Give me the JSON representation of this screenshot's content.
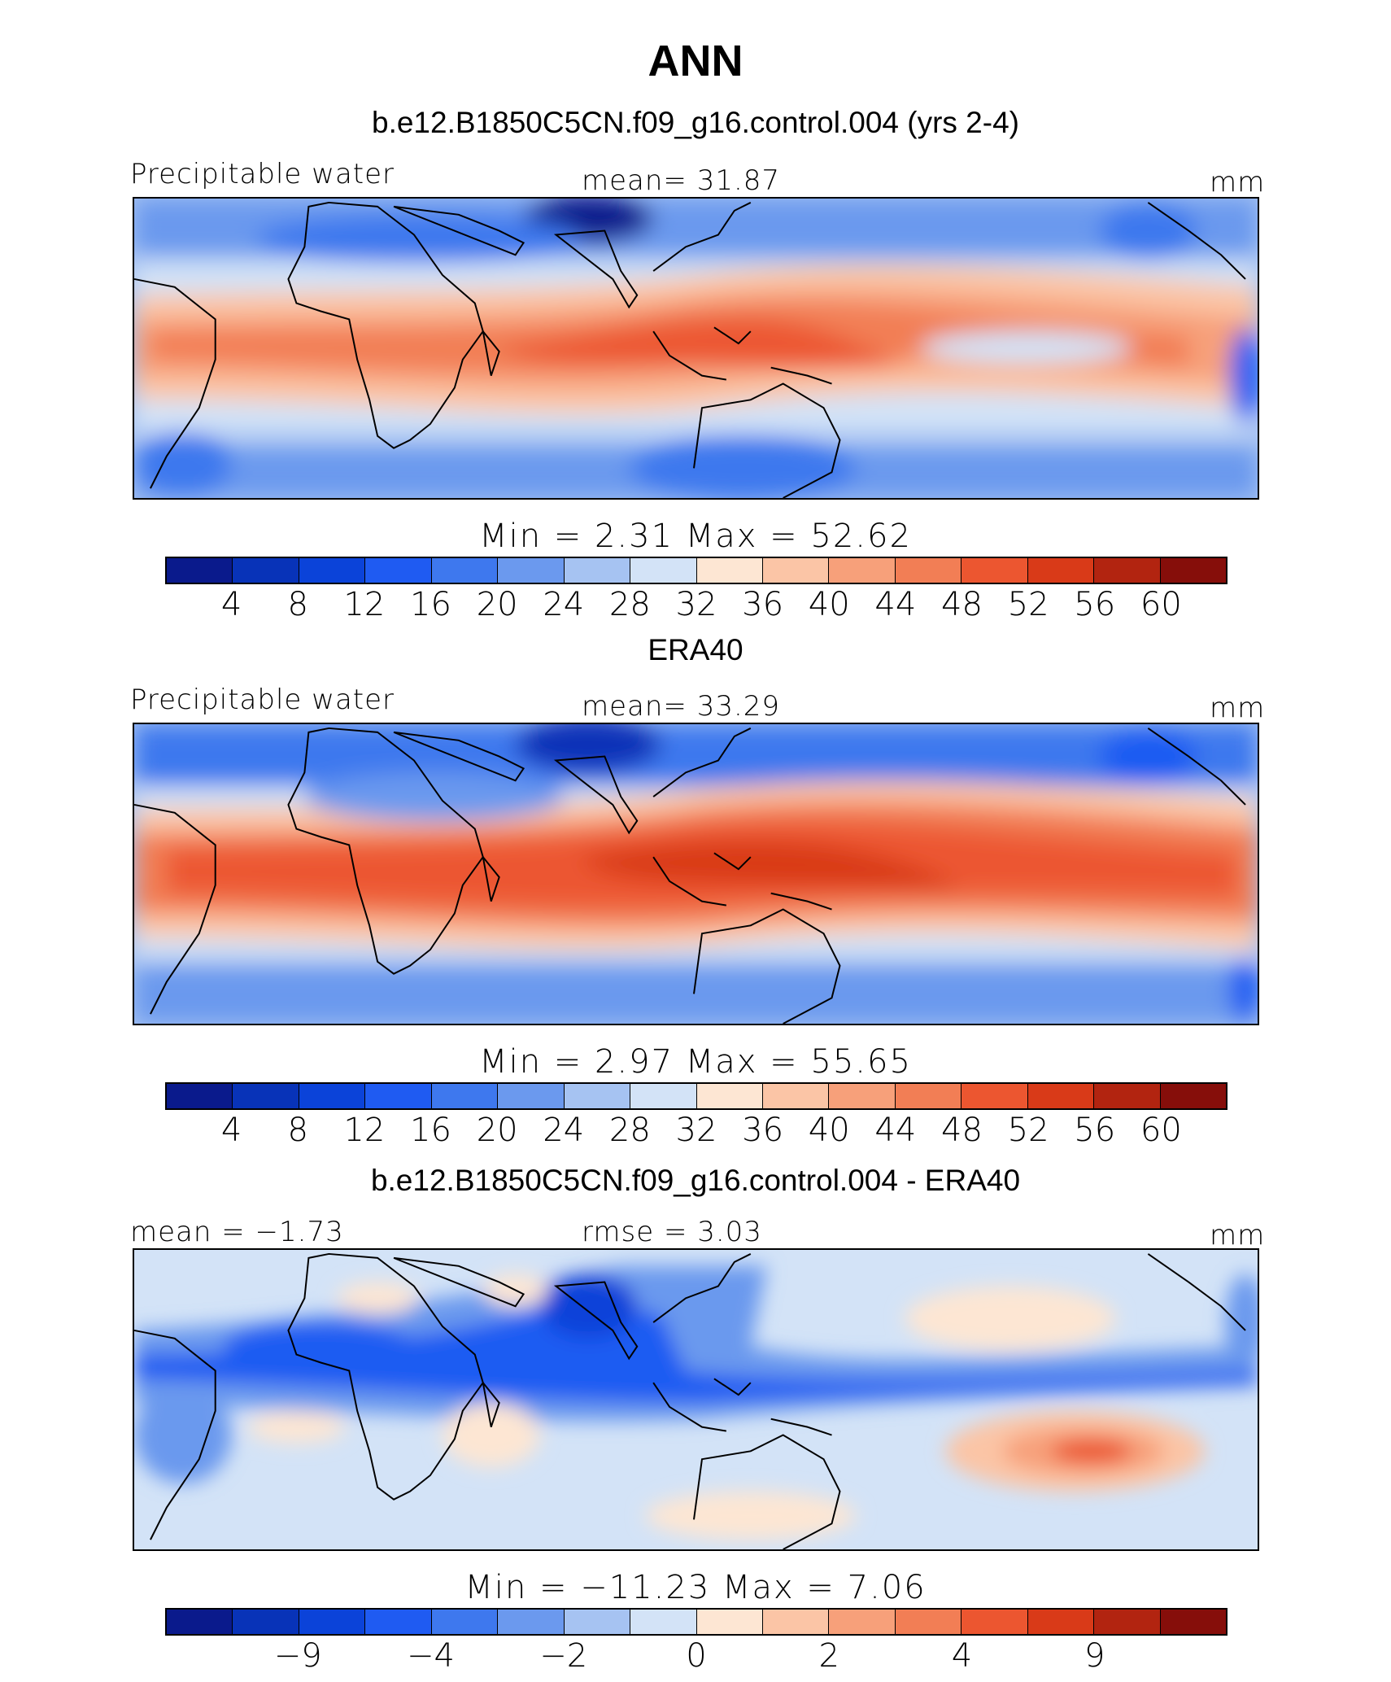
{
  "title": "ANN",
  "palette": [
    "#0a1a8c",
    "#0833b8",
    "#0b43d9",
    "#1f5bf2",
    "#3e78ee",
    "#6b99ee",
    "#a6c3f2",
    "#d3e3f7",
    "#fde6d3",
    "#fbc5a6",
    "#f7a07a",
    "#f27e55",
    "#ec5630",
    "#d93a18",
    "#b22410",
    "#860e0a"
  ],
  "panels": [
    {
      "title": "b.e12.B1850C5CN.f09_g16.control.004 (yrs 2-4)",
      "left_label": "Precipitable  water",
      "center_label": "mean=   31.87",
      "right_label": "mm",
      "min_max": "Min  =     2.31  Max  =   52.62",
      "colorbar_ticks": [
        "4",
        "8",
        "12",
        "16",
        "20",
        "24",
        "28",
        "32",
        "36",
        "40",
        "44",
        "48",
        "52",
        "56",
        "60"
      ],
      "tick_slots": [
        1,
        2,
        3,
        4,
        5,
        6,
        7,
        8,
        9,
        10,
        11,
        12,
        13,
        14,
        15
      ]
    },
    {
      "title": "ERA40",
      "left_label": "Precipitable  water",
      "center_label": "mean=   33.29",
      "right_label": "mm",
      "min_max": "Min  =     2.97  Max  =   55.65",
      "colorbar_ticks": [
        "4",
        "8",
        "12",
        "16",
        "20",
        "24",
        "28",
        "32",
        "36",
        "40",
        "44",
        "48",
        "52",
        "56",
        "60"
      ],
      "tick_slots": [
        1,
        2,
        3,
        4,
        5,
        6,
        7,
        8,
        9,
        10,
        11,
        12,
        13,
        14,
        15
      ]
    },
    {
      "title": "b.e12.B1850C5CN.f09_g16.control.004 - ERA40",
      "left_label": "mean  =   −1.73",
      "center_label": "rmse  =     3.03",
      "right_label": "mm",
      "min_max": "Min  =  −11.23  Max  =     7.06",
      "colorbar_ticks": [
        "−9",
        "−4",
        "−2",
        "0",
        "2",
        "4",
        "9"
      ],
      "tick_slots": [
        2,
        4,
        6,
        8,
        10,
        12,
        14
      ]
    }
  ]
}
